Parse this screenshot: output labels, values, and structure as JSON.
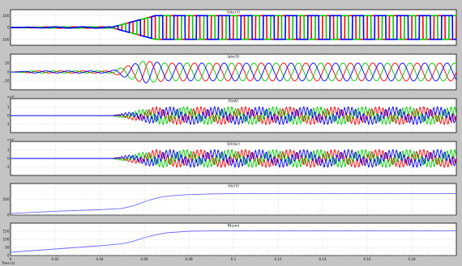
{
  "window": {
    "background": "#c4c4c4",
    "plot_background": "#ffffff",
    "grid_color": "#c8c8c8"
  },
  "time_axis": {
    "range": [
      0,
      0.2
    ],
    "tick_labels": [
      "0",
      "0.02",
      "0.04",
      "0.06",
      "0.08",
      "0.1",
      "0.12",
      "0.14",
      "0.16",
      "0.18"
    ],
    "corner_label": "Time (s)"
  },
  "chart_data": [
    {
      "type": "line",
      "title": "Vabc(V)",
      "exponent_label": "",
      "ylim": [
        -150,
        150
      ],
      "y_tick_labels": [
        "100",
        "0",
        "-100"
      ],
      "y_ticks": [
        100,
        0,
        -100
      ],
      "series": [
        {
          "color": "#ff0000",
          "style": "pwm"
        },
        {
          "color": "#00cc00",
          "style": "pwm"
        },
        {
          "color": "#0000ff",
          "style": "pwm"
        }
      ],
      "transient": {
        "start": 0.045,
        "end": 0.065
      },
      "steady_amplitude": 100
    },
    {
      "type": "line",
      "title": "Iabc(A)",
      "exponent_label": "",
      "ylim": [
        -40,
        40
      ],
      "y_tick_labels": [
        "20",
        "0",
        "-20"
      ],
      "y_ticks": [
        20,
        0,
        -20
      ],
      "series": [
        {
          "color": "#ff0000",
          "style": "sine"
        },
        {
          "color": "#00cc00",
          "style": "sine"
        },
        {
          "color": "#0000ff",
          "style": "sine"
        }
      ],
      "frequency_hz": 100,
      "steady_amplitude": 20
    },
    {
      "type": "line",
      "title": "P(kW)",
      "exponent_label": "x10⁴",
      "ylim": [
        -2,
        2
      ],
      "y_tick_labels": [
        "1",
        "0",
        "-1"
      ],
      "y_ticks": [
        1,
        0,
        -1
      ],
      "series": [
        {
          "color": "#ff0000",
          "style": "ripple"
        },
        {
          "color": "#00cc00",
          "style": "ripple"
        },
        {
          "color": "#0000ff",
          "style": "ripple"
        }
      ],
      "frequency_hz": 50
    },
    {
      "type": "line",
      "title": "Q(kVar)",
      "exponent_label": "x10⁴",
      "ylim": [
        -2,
        2
      ],
      "y_tick_labels": [
        "1",
        "0",
        "-1"
      ],
      "y_ticks": [
        1,
        0,
        -1
      ],
      "series": [
        {
          "color": "#ff0000",
          "style": "ripple"
        },
        {
          "color": "#00cc00",
          "style": "ripple"
        },
        {
          "color": "#0000ff",
          "style": "ripple"
        }
      ],
      "frequency_hz": 50
    },
    {
      "type": "line",
      "title": "Vdc(V)",
      "exponent_label": "",
      "ylim": [
        0,
        1000
      ],
      "y_tick_labels": [
        "500",
        "0"
      ],
      "y_ticks": [
        500,
        0
      ],
      "series": [
        {
          "color": "#6a6aff",
          "style": "rise"
        }
      ],
      "x": [
        0,
        0.02,
        0.04,
        0.05,
        0.055,
        0.06,
        0.065,
        0.07,
        0.08,
        0.09,
        0.1,
        0.12,
        0.14,
        0.16,
        0.18,
        0.2
      ],
      "values": [
        50,
        120,
        170,
        210,
        290,
        420,
        530,
        600,
        650,
        670,
        680,
        680,
        680,
        680,
        680,
        680
      ]
    },
    {
      "type": "line",
      "title": "N(rpm)",
      "exponent_label": "",
      "ylim": [
        0,
        200
      ],
      "y_tick_labels": [
        "150",
        "100",
        "50",
        "0"
      ],
      "y_ticks": [
        150,
        100,
        50,
        0
      ],
      "series": [
        {
          "color": "#6a6aff",
          "style": "rise"
        }
      ],
      "x": [
        0,
        0.02,
        0.04,
        0.05,
        0.055,
        0.06,
        0.065,
        0.07,
        0.08,
        0.09,
        0.1,
        0.12,
        0.14,
        0.16,
        0.18,
        0.2
      ],
      "values": [
        20,
        40,
        60,
        72,
        88,
        110,
        128,
        140,
        150,
        152,
        153,
        153,
        153,
        153,
        153,
        153
      ]
    }
  ]
}
